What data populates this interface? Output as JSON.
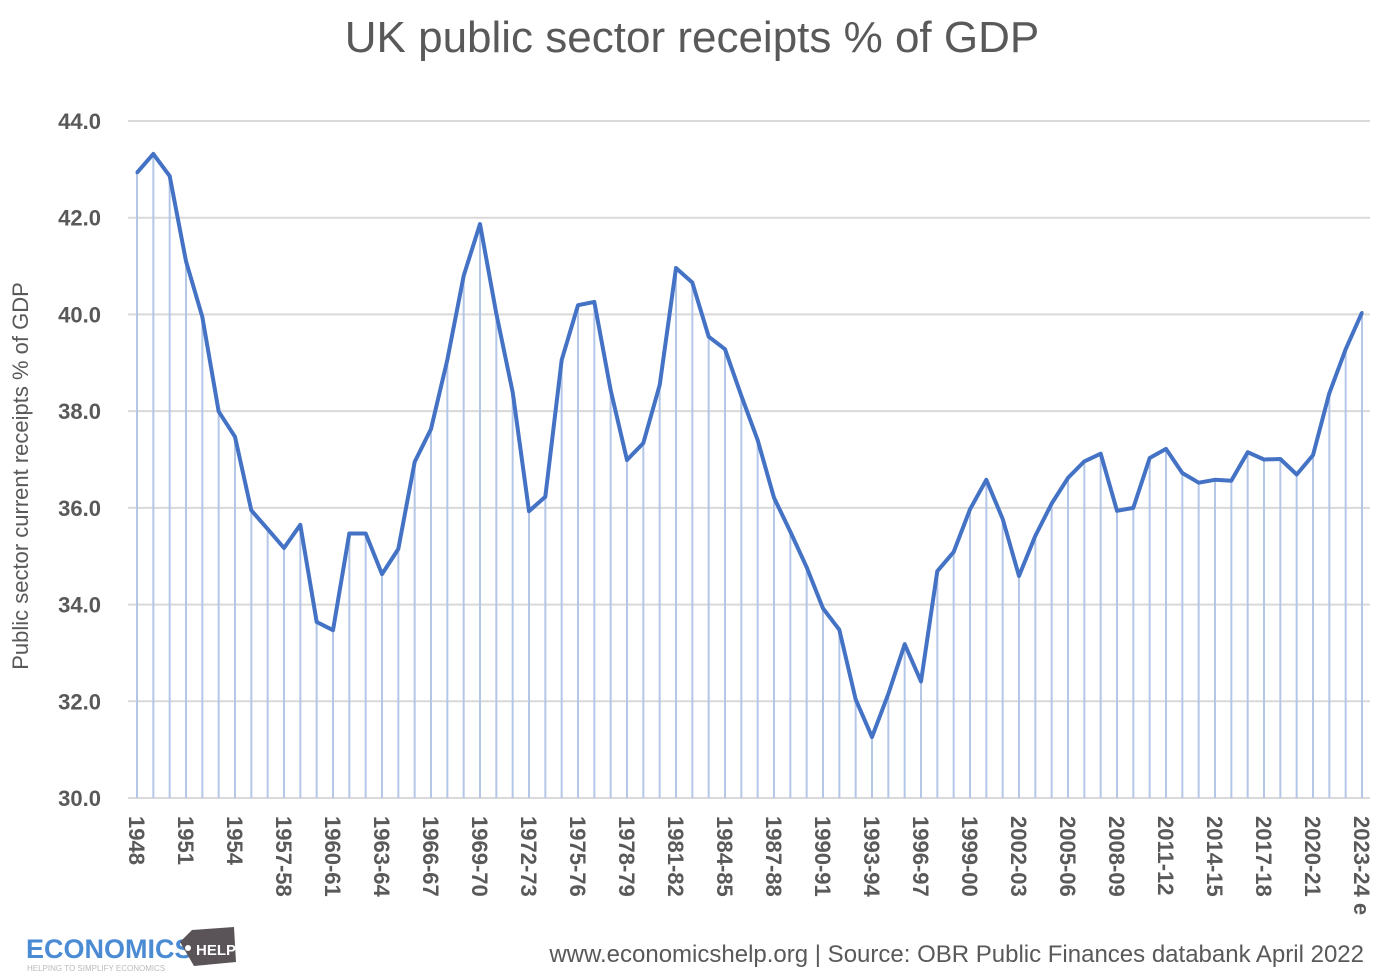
{
  "chart_data": {
    "type": "line",
    "title": "UK public sector receipts % of GDP",
    "xlabel": "",
    "ylabel": "Public sector current receipts % of GDP",
    "ylim": [
      30,
      44
    ],
    "yticks": [
      "30.0",
      "32.0",
      "34.0",
      "36.0",
      "38.0",
      "40.0",
      "42.0",
      "44.0"
    ],
    "grid": true,
    "drop_lines": true,
    "legend": "none",
    "line_color": "#4472C4",
    "drop_line_color": "#B4C7E7",
    "grid_color": "#D9D9D9",
    "categories": [
      "1948",
      "1949",
      "1950",
      "1951",
      "1952",
      "1953",
      "1954",
      "1955",
      "1956",
      "1957-58",
      "1958-59",
      "1959-60",
      "1960-61",
      "1961-62",
      "1962-63",
      "1963-64",
      "1964-65",
      "1965-66",
      "1966-67",
      "1967-68",
      "1968-69",
      "1969-70",
      "1970-71",
      "1971-72",
      "1972-73",
      "1973-74",
      "1974-75",
      "1975-76",
      "1976-77",
      "1977-78",
      "1978-79",
      "1979-80",
      "1980-81",
      "1981-82",
      "1982-83",
      "1983-84",
      "1984-85",
      "1985-86",
      "1986-87",
      "1987-88",
      "1988-89",
      "1989-90",
      "1990-91",
      "1991-92",
      "1992-93",
      "1993-94",
      "1994-95",
      "1995-96",
      "1996-97",
      "1997-98",
      "1998-99",
      "1999-00",
      "2000-01",
      "2001-02",
      "2002-03",
      "2003-04",
      "2004-05",
      "2005-06",
      "2006-07",
      "2007-08",
      "2008-09",
      "2009-10",
      "2010-11",
      "2011-12",
      "2012-13",
      "2013-14",
      "2014-15",
      "2015-16",
      "2016-17",
      "2017-18",
      "2018-19",
      "2019-20",
      "2020-21",
      "2021-22",
      "2022-23",
      "2023-24 e"
    ],
    "tick_every": 3,
    "values": [
      42.93,
      43.32,
      42.86,
      41.1,
      39.95,
      37.99,
      37.47,
      35.95,
      35.56,
      35.17,
      35.65,
      33.64,
      33.47,
      35.47,
      35.47,
      34.63,
      35.15,
      36.95,
      37.63,
      39.06,
      40.8,
      41.87,
      40.02,
      38.39,
      35.93,
      36.23,
      39.06,
      40.19,
      40.26,
      38.43,
      36.99,
      37.34,
      38.54,
      40.96,
      40.66,
      39.54,
      39.28,
      38.32,
      37.4,
      36.21,
      35.51,
      34.77,
      33.92,
      33.48,
      32.04,
      31.26,
      32.15,
      33.18,
      32.41,
      34.69,
      35.09,
      35.97,
      36.58,
      35.77,
      34.59,
      35.42,
      36.09,
      36.62,
      36.96,
      37.12,
      35.94,
      36.0,
      37.03,
      37.22,
      36.72,
      36.52,
      36.58,
      36.56,
      37.15,
      37.0,
      37.01,
      36.69,
      37.09,
      38.37,
      39.28,
      40.04
    ]
  },
  "footer": {
    "source": "www.economicshelp.org  | Source:  OBR Public Finances databank April 2022"
  },
  "logo": {
    "word": "ECONOMICS",
    "tag": "HELP",
    "tagline": "HELPING TO SIMPLIFY ECONOMICS",
    "color": "#4A8BD4"
  }
}
